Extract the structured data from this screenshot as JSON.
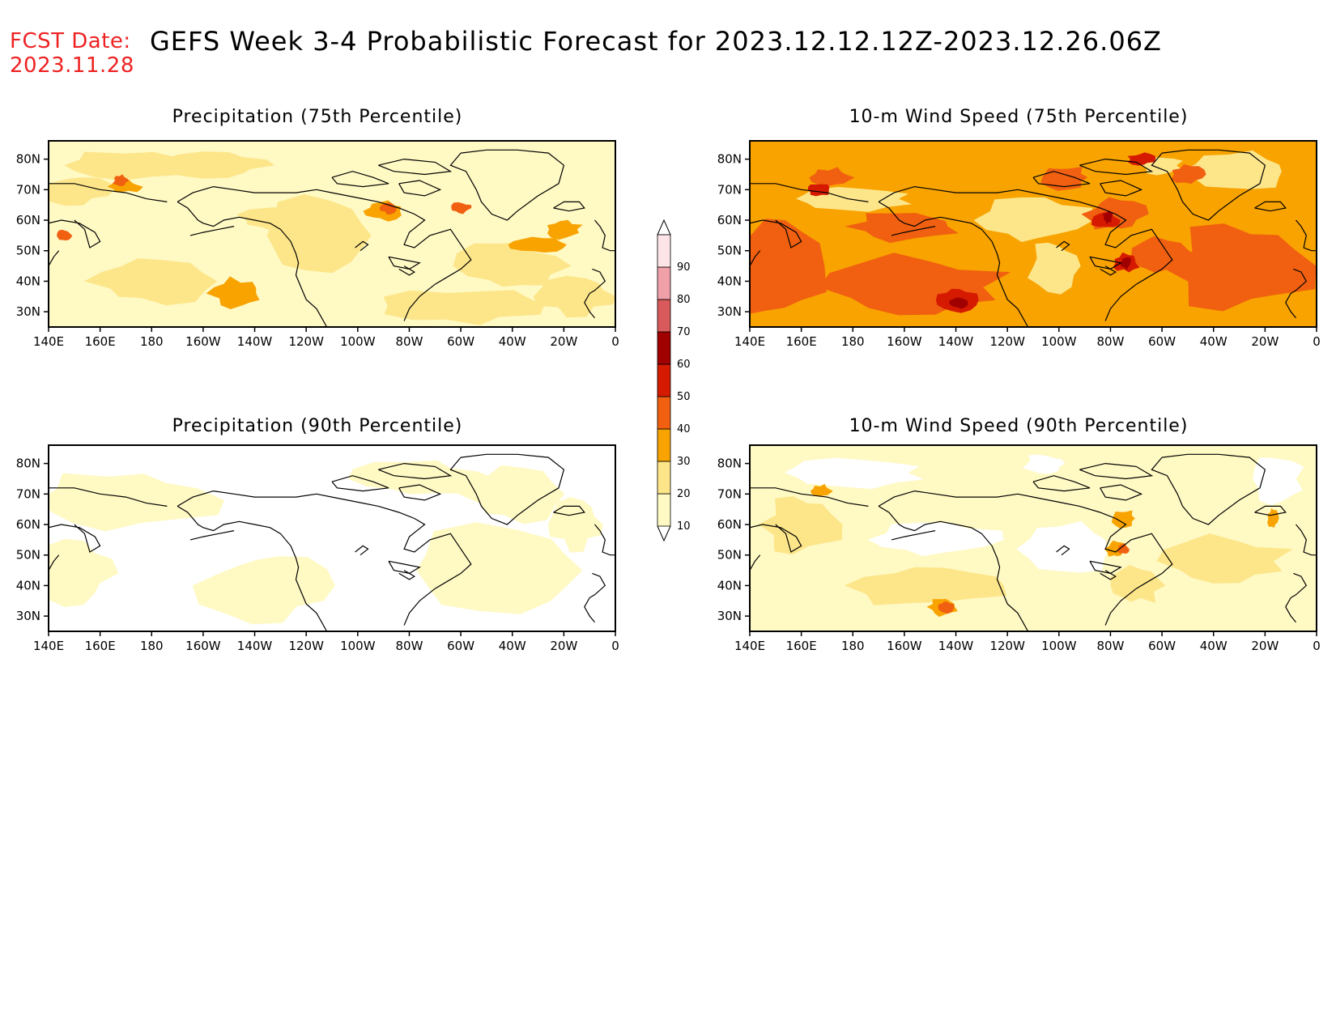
{
  "header": {
    "fcst_label": "FCST Date:",
    "fcst_date": "2023.11.28",
    "title": "GEFS Week 3-4 Probabilistic Forecast for 2023.12.12.12Z-2023.12.26.06Z",
    "fcst_color": "#ee2222"
  },
  "axes": {
    "lon_ticks": [
      "140E",
      "160E",
      "180",
      "160W",
      "140W",
      "120W",
      "100W",
      "80W",
      "60W",
      "40W",
      "20W",
      "0"
    ],
    "lat_ticks": [
      "80N",
      "70N",
      "60N",
      "50N",
      "40N",
      "30N"
    ]
  },
  "panels": [
    {
      "id": "precip75",
      "title": "Precipitation (75th Percentile)",
      "background_level": 10
    },
    {
      "id": "wind75",
      "title": "10-m Wind Speed (75th Percentile)",
      "background_level": 30
    },
    {
      "id": "precip90",
      "title": "Precipitation (90th Percentile)",
      "background_level": 0
    },
    {
      "id": "wind90",
      "title": "10-m Wind Speed (90th Percentile)",
      "background_level": 10
    }
  ],
  "colorbar": {
    "levels": [
      "10",
      "20",
      "30",
      "40",
      "50",
      "60",
      "70",
      "80",
      "90"
    ],
    "colors": [
      "#fff9c4",
      "#fde68a",
      "#f8a300",
      "#f06010",
      "#d51a00",
      "#a00000",
      "#d85a5a",
      "#f0a0a8",
      "#fde4e8"
    ]
  }
}
